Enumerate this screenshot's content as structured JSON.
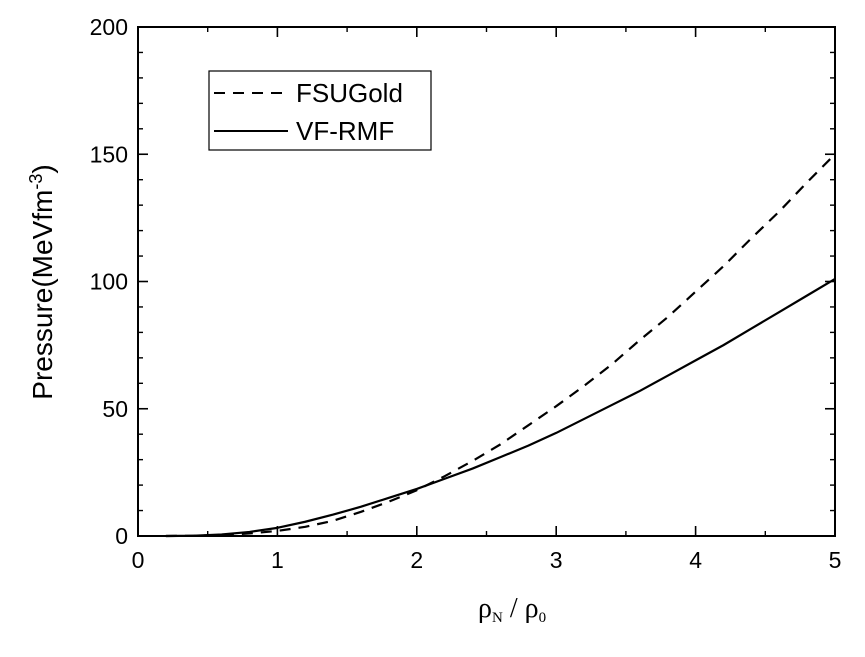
{
  "chart_data": {
    "type": "line",
    "xlabel": "ρN / ρ0",
    "xlabel_main": "ρ",
    "xlabel_sub1": "N",
    "xlabel_sep": " / ",
    "xlabel_main2": "ρ",
    "xlabel_sub2": "0",
    "ylabel": "Pressure(MeVfm-3)",
    "ylabel_main": "Pressure(MeVfm",
    "ylabel_sup": "-3",
    "ylabel_close": ")",
    "xlim": [
      0,
      5
    ],
    "ylim": [
      0,
      200
    ],
    "xticks": [
      "0",
      "1",
      "2",
      "3",
      "4",
      "5"
    ],
    "yticks": [
      "0",
      "50",
      "100",
      "150",
      "200"
    ],
    "grid": false,
    "legend_position": "top-left",
    "series": [
      {
        "name": "FSUGold",
        "style": "dashed",
        "color": "#000000",
        "x": [
          0.2,
          0.4,
          0.6,
          0.8,
          1.0,
          1.2,
          1.4,
          1.6,
          1.8,
          2.0,
          2.2,
          2.4,
          2.6,
          2.8,
          3.0,
          3.2,
          3.4,
          3.6,
          3.8,
          4.0,
          4.2,
          4.4,
          4.6,
          4.8,
          5.0
        ],
        "y": [
          0.0,
          0.1,
          0.4,
          1.0,
          2.0,
          3.6,
          6.0,
          9.5,
          13.5,
          18.0,
          23.5,
          29.5,
          36.0,
          43.5,
          51.0,
          59.0,
          67.5,
          77.0,
          86.0,
          96.0,
          106.0,
          117.0,
          127.5,
          139.0,
          150.0
        ]
      },
      {
        "name": "VF-RMF",
        "style": "solid",
        "color": "#000000",
        "x": [
          0.2,
          0.4,
          0.6,
          0.8,
          1.0,
          1.2,
          1.4,
          1.6,
          1.8,
          2.0,
          2.2,
          2.4,
          2.6,
          2.8,
          3.0,
          3.2,
          3.4,
          3.6,
          3.8,
          4.0,
          4.2,
          4.4,
          4.6,
          4.8,
          5.0
        ],
        "y": [
          0.0,
          0.1,
          0.6,
          1.6,
          3.2,
          5.6,
          8.4,
          11.5,
          15.0,
          18.5,
          22.5,
          26.5,
          31.0,
          35.5,
          40.5,
          46.0,
          51.5,
          57.0,
          63.0,
          69.0,
          75.0,
          81.5,
          88.0,
          94.5,
          101.0
        ]
      }
    ]
  }
}
